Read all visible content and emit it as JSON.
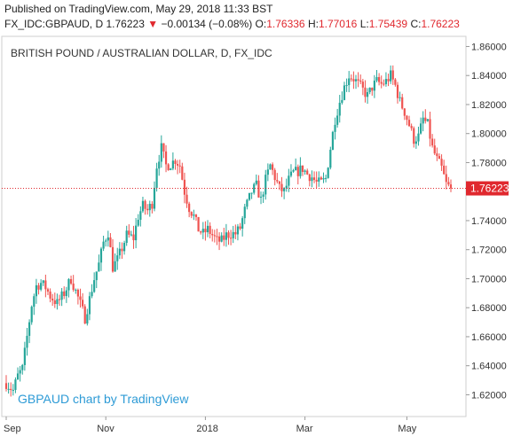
{
  "header": {
    "published": "Published on TradingView.com, May 29, 2018 11:33 BST",
    "symbol": "FX_IDC:GBPAUD, D",
    "last": "1.76223",
    "change_arrow": "▼",
    "change": "−0.00134 (−0.08%)",
    "o_label": "O:",
    "o_value": "1.76336",
    "h_label": "H:",
    "h_value": "1.77016",
    "l_label": "L:",
    "l_value": "1.75439",
    "c_label": "C:",
    "c_value": "1.76223"
  },
  "colors": {
    "up": "#26a69a",
    "down": "#ef5350",
    "price_line": "#e0282e",
    "price_tag_bg": "#e0282e",
    "watermark": "#2e9bd6",
    "axis": "#cccccc",
    "text": "#222222"
  },
  "chart_data": {
    "type": "candlestick",
    "title": "BRITISH POUND / AUSTRALIAN DOLLAR, D, FX_IDC",
    "watermark": "GBPAUD chart by TradingView",
    "last_price_label": "1.76223",
    "last_price": 1.76223,
    "ylim": [
      1.605,
      1.867
    ],
    "y_ticks": [
      "1.62000",
      "1.64000",
      "1.66000",
      "1.68000",
      "1.70000",
      "1.72000",
      "1.74000",
      "1.76000",
      "1.78000",
      "1.80000",
      "1.82000",
      "1.84000",
      "1.86000"
    ],
    "y_tick_values": [
      1.62,
      1.64,
      1.66,
      1.68,
      1.7,
      1.72,
      1.74,
      1.76,
      1.78,
      1.8,
      1.82,
      1.84,
      1.86
    ],
    "x_ticks": [
      {
        "label": "Sep",
        "index": 0
      },
      {
        "label": "Nov",
        "index": 43
      },
      {
        "label": "2018",
        "index": 86
      },
      {
        "label": "Mar",
        "index": 129
      },
      {
        "label": "May",
        "index": 173
      }
    ],
    "grid": false,
    "anchors": [
      [
        0,
        1.628
      ],
      [
        3,
        1.623
      ],
      [
        5,
        1.633
      ],
      [
        7,
        1.638
      ],
      [
        9,
        1.66
      ],
      [
        11,
        1.682
      ],
      [
        13,
        1.695
      ],
      [
        15,
        1.697
      ],
      [
        17,
        1.694
      ],
      [
        19,
        1.688
      ],
      [
        22,
        1.683
      ],
      [
        25,
        1.69
      ],
      [
        28,
        1.7
      ],
      [
        31,
        1.687
      ],
      [
        34,
        1.673
      ],
      [
        36,
        1.686
      ],
      [
        38,
        1.7
      ],
      [
        40,
        1.71
      ],
      [
        42,
        1.725
      ],
      [
        44,
        1.732
      ],
      [
        46,
        1.708
      ],
      [
        48,
        1.713
      ],
      [
        50,
        1.721
      ],
      [
        52,
        1.73
      ],
      [
        55,
        1.728
      ],
      [
        57,
        1.743
      ],
      [
        59,
        1.75
      ],
      [
        61,
        1.747
      ],
      [
        63,
        1.752
      ],
      [
        65,
        1.778
      ],
      [
        67,
        1.79
      ],
      [
        69,
        1.778
      ],
      [
        71,
        1.779
      ],
      [
        73,
        1.782
      ],
      [
        75,
        1.778
      ],
      [
        77,
        1.76
      ],
      [
        79,
        1.749
      ],
      [
        81,
        1.743
      ],
      [
        83,
        1.734
      ],
      [
        85,
        1.731
      ],
      [
        87,
        1.734
      ],
      [
        89,
        1.73
      ],
      [
        91,
        1.726
      ],
      [
        93,
        1.726
      ],
      [
        95,
        1.73
      ],
      [
        97,
        1.731
      ],
      [
        99,
        1.731
      ],
      [
        101,
        1.735
      ],
      [
        103,
        1.747
      ],
      [
        106,
        1.76
      ],
      [
        108,
        1.764
      ],
      [
        110,
        1.754
      ],
      [
        112,
        1.768
      ],
      [
        114,
        1.778
      ],
      [
        116,
        1.77
      ],
      [
        118,
        1.762
      ],
      [
        120,
        1.76
      ],
      [
        122,
        1.768
      ],
      [
        124,
        1.773
      ],
      [
        126,
        1.774
      ],
      [
        128,
        1.776
      ],
      [
        130,
        1.772
      ],
      [
        132,
        1.77
      ],
      [
        134,
        1.766
      ],
      [
        136,
        1.766
      ],
      [
        138,
        1.769
      ],
      [
        140,
        1.79
      ],
      [
        142,
        1.81
      ],
      [
        144,
        1.822
      ],
      [
        146,
        1.832
      ],
      [
        148,
        1.84
      ],
      [
        150,
        1.838
      ],
      [
        152,
        1.834
      ],
      [
        154,
        1.83
      ],
      [
        156,
        1.826
      ],
      [
        158,
        1.832
      ],
      [
        160,
        1.836
      ],
      [
        162,
        1.834
      ],
      [
        164,
        1.836
      ],
      [
        166,
        1.84
      ],
      [
        168,
        1.833
      ],
      [
        170,
        1.822
      ],
      [
        172,
        1.815
      ],
      [
        174,
        1.806
      ],
      [
        176,
        1.796
      ],
      [
        178,
        1.798
      ],
      [
        180,
        1.81
      ],
      [
        182,
        1.806
      ],
      [
        184,
        1.79
      ],
      [
        186,
        1.782
      ],
      [
        188,
        1.776
      ],
      [
        190,
        1.765
      ],
      [
        192,
        1.762
      ]
    ]
  }
}
